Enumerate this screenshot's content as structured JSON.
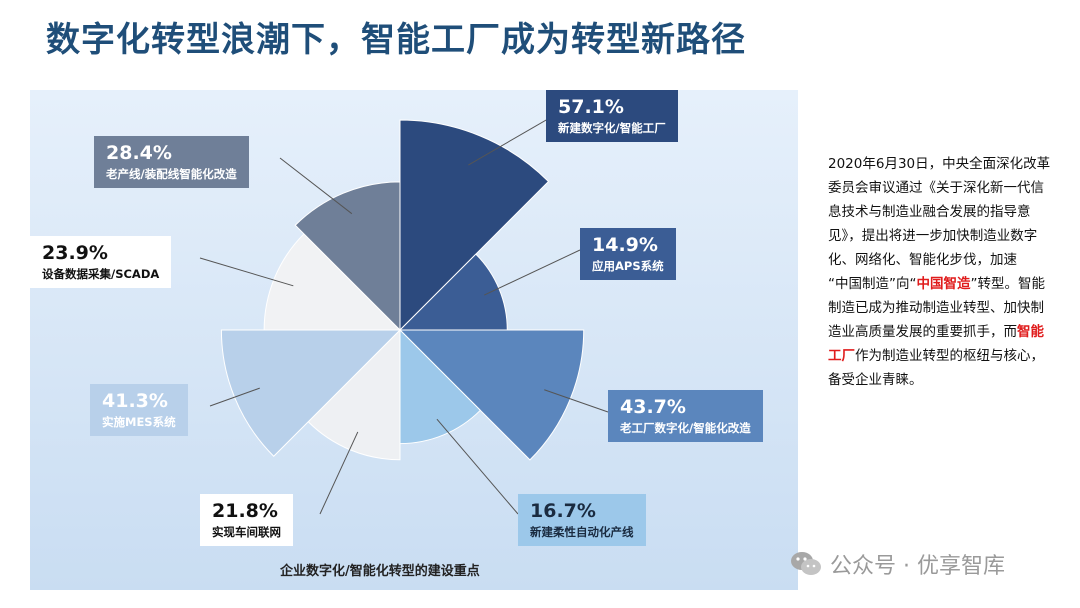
{
  "title": "数字化转型浪潮下，智能工厂成为转型新路径",
  "chart_data": {
    "type": "pie",
    "subtype": "nightingale-rose",
    "caption": "企业数字化/智能化转型的建设重点",
    "slices": [
      {
        "category": "新建数字化/智能工厂",
        "value": 57.1,
        "value_label": "57.1%",
        "color": "#2c4a7e",
        "label_bg": "#2c4a7e",
        "label_fg": "#ffffff"
      },
      {
        "category": "应用APS系统",
        "value": 14.9,
        "value_label": "14.9%",
        "color": "#3b5d95",
        "label_bg": "#3b5d95",
        "label_fg": "#ffffff"
      },
      {
        "category": "老工厂数字化/智能化改造",
        "value": 43.7,
        "value_label": "43.7%",
        "color": "#5b86bd",
        "label_bg": "#5b86bd",
        "label_fg": "#ffffff"
      },
      {
        "category": "新建柔性自动化产线",
        "value": 16.7,
        "value_label": "16.7%",
        "color": "#9cc8ea",
        "label_bg": "#9cc8ea",
        "label_fg": "#1a2b40"
      },
      {
        "category": "实现车间联网",
        "value": 21.8,
        "value_label": "21.8%",
        "color": "#eef0f3",
        "label_bg": "#ffffff",
        "label_fg": "#111111"
      },
      {
        "category": "实施MES系统",
        "value": 41.3,
        "value_label": "41.3%",
        "color": "#b8d0ea",
        "label_bg": "#b8d0ea",
        "label_fg": "#ffffff"
      },
      {
        "category": "设备数据采集/SCADA",
        "value": 23.9,
        "value_label": "23.9%",
        "color": "#f1f2f4",
        "label_bg": "#ffffff",
        "label_fg": "#111111"
      },
      {
        "category": "老产线/装配线智能化改造",
        "value": 28.4,
        "value_label": "28.4%",
        "color": "#6f7f98",
        "label_bg": "#6f7f98",
        "label_fg": "#ffffff"
      }
    ]
  },
  "sidebar": {
    "p1": "2020年6月30日，中央全面深化改革委员会审议通过《关于深化新一代信息技术与制造业融合发展的指导意见》，提出将进一步加快制造业数字化、网络化、智能化步伐，加速",
    "p2_a": "“中国制造”向“",
    "p2_hl": "中国智造",
    "p2_b": "”转型。智能制造已成为推动制造业转型、加快制造业高质量发展的重要抓手，而",
    "p2_hl2": "智能工厂",
    "p2_c": "作为制造业转型的枢纽与核心，备受企业青睐。"
  },
  "watermark": {
    "text": "公众号 · 优享智库",
    "icon": "wechat-icon"
  }
}
